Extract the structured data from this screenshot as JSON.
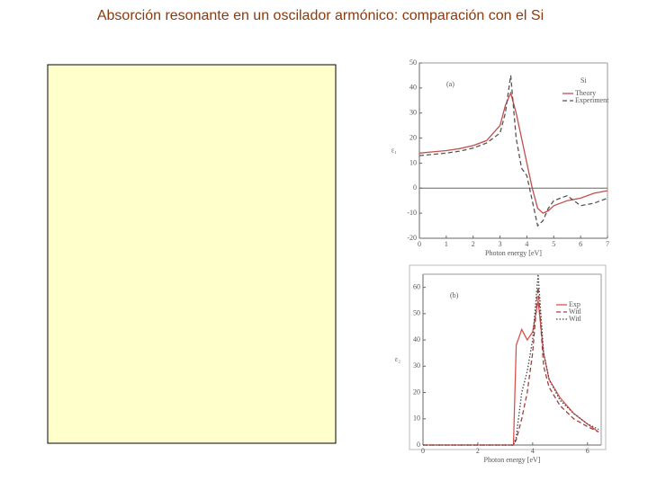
{
  "title": "Absorción resonante en un oscilador armónico: comparación con el Si",
  "chart_data": [
    {
      "type": "line",
      "title": "(a)",
      "label": "Si",
      "x_label": "Photon energy  [eV]",
      "y_label": "ε₁",
      "x": [
        0,
        0.5,
        1,
        1.5,
        2,
        2.5,
        3,
        3.2,
        3.4,
        3.6,
        3.8,
        4,
        4.2,
        4.4,
        4.6,
        4.8,
        5,
        5.5,
        6,
        6.5,
        7
      ],
      "series": [
        {
          "name": "Theory",
          "color": "#c0504d",
          "dash": "solid",
          "values": [
            14,
            14.5,
            15,
            15.8,
            17,
            19,
            25,
            33,
            38,
            30,
            20,
            10,
            0,
            -8,
            -10,
            -9,
            -7,
            -5,
            -4,
            -2,
            -1
          ]
        },
        {
          "name": "Experiment",
          "color": "#555555",
          "dash": "dashed",
          "values": [
            13,
            13.5,
            14,
            14.8,
            16,
            18,
            22,
            30,
            45,
            20,
            8,
            5,
            -5,
            -15,
            -13,
            -8,
            -5,
            -3,
            -7,
            -6,
            -4
          ]
        }
      ],
      "xlim": [
        0,
        7
      ],
      "xticks": [
        0,
        1,
        2,
        3,
        4,
        5,
        6,
        7
      ],
      "ylim": [
        -20,
        50
      ],
      "yticks": [
        -20,
        -10,
        0,
        10,
        20,
        30,
        40,
        50
      ],
      "zero_line": true
    },
    {
      "type": "line",
      "title": "(b)",
      "x_label": "Photon energy  [eV]",
      "y_label": "ε₂",
      "x": [
        0,
        1,
        2,
        3,
        3.3,
        3.4,
        3.6,
        3.8,
        4,
        4.2,
        4.4,
        4.6,
        5,
        5.5,
        6,
        6.4
      ],
      "series": [
        {
          "name": "Exp",
          "color": "#d9534f",
          "dash": "solid",
          "values": [
            0,
            0,
            0,
            0,
            0,
            38,
            44,
            40,
            43,
            55,
            35,
            25,
            18,
            12,
            8,
            5
          ]
        },
        {
          "name": "Witl",
          "color": "#a04040",
          "dash": "dashed",
          "values": [
            0,
            0,
            0,
            0,
            0,
            2,
            10,
            20,
            35,
            60,
            30,
            22,
            15,
            10,
            7,
            5
          ]
        },
        {
          "name": "Witl",
          "color": "#444444",
          "dash": "dotted",
          "values": [
            0,
            0,
            0,
            0,
            0,
            3,
            20,
            28,
            40,
            65,
            35,
            25,
            17,
            12,
            8,
            6
          ]
        }
      ],
      "xlim": [
        0,
        6.5
      ],
      "xticks": [
        0,
        2,
        4,
        6
      ],
      "ylim": [
        0,
        65
      ],
      "yticks": [
        0,
        10,
        20,
        30,
        40,
        50,
        60
      ],
      "zero_line": false
    }
  ]
}
